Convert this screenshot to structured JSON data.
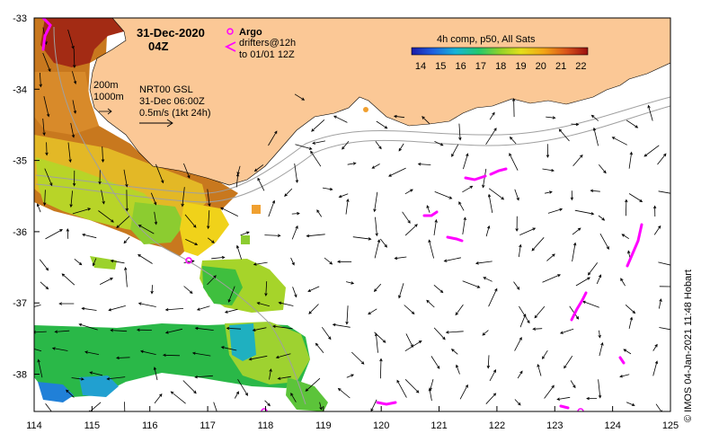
{
  "map": {
    "date": "31-Dec-2020",
    "hour": "04Z",
    "argo_label": "Argo",
    "drifters_line1": "drifters@12h",
    "drifters_line2": "to 01/01 12Z",
    "depth_label_1": "200m",
    "depth_label_2": "1000m",
    "product_line1": "NRT00 GSL",
    "product_line2": "31-Dec 06:00Z",
    "product_line3": "0.5m/s (1kt 24h)",
    "colorbar_title": "4h comp, p50, All Sats",
    "colorbar_ticks": [
      "14",
      "15",
      "16",
      "17",
      "18",
      "19",
      "20",
      "21",
      "22"
    ],
    "x_ticks": [
      "114",
      "115",
      "116",
      "117",
      "118",
      "119",
      "120",
      "121",
      "122",
      "123",
      "124",
      "125"
    ],
    "y_ticks": [
      "-33",
      "-34",
      "-35",
      "-36",
      "-37",
      "-38"
    ],
    "credit": "© IMOS 04-Jan-2021 11:48 Hobart",
    "colors": {
      "land": "#fbc896",
      "argo": "#ff00ff",
      "drifter": "#ff00ff",
      "isobath": "#a0a0a0"
    }
  }
}
